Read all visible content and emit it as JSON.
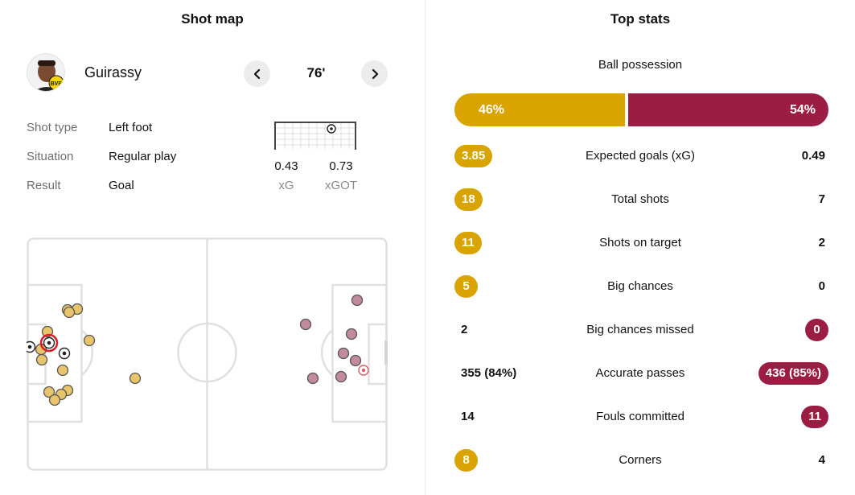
{
  "shot_map": {
    "title": "Shot map",
    "player": {
      "name": "Guirassy",
      "club_badge": "BVB"
    },
    "minute": "76'",
    "prev_icon": "chevron-left-icon",
    "next_icon": "chevron-right-icon",
    "details": [
      {
        "label": "Shot type",
        "value": "Left foot"
      },
      {
        "label": "Situation",
        "value": "Regular play"
      },
      {
        "label": "Result",
        "value": "Goal"
      }
    ],
    "xg": {
      "value": "0.43",
      "label": "xG"
    },
    "xgot": {
      "value": "0.73",
      "label": "xGOT"
    },
    "colors": {
      "home": "#e8c56b",
      "away": "#c28b9c",
      "selected": "#d91f26"
    }
  },
  "top_stats": {
    "title": "Top stats",
    "possession": {
      "label": "Ball possession",
      "home": "46%",
      "away": "54%",
      "home_value": 46,
      "away_value": 54
    },
    "colors": {
      "home": "#d9a300",
      "away": "#9b1d44"
    },
    "rows": [
      {
        "label": "Expected goals (xG)",
        "home": "3.85",
        "away": "0.49",
        "highlight": "home"
      },
      {
        "label": "Total shots",
        "home": "18",
        "away": "7",
        "highlight": "home"
      },
      {
        "label": "Shots on target",
        "home": "11",
        "away": "2",
        "highlight": "home"
      },
      {
        "label": "Big chances",
        "home": "5",
        "away": "0",
        "highlight": "home"
      },
      {
        "label": "Big chances missed",
        "home": "2",
        "away": "0",
        "highlight": "away"
      },
      {
        "label": "Accurate passes",
        "home": "355 (84%)",
        "away": "436 (85%)",
        "highlight": "away"
      },
      {
        "label": "Fouls committed",
        "home": "14",
        "away": "11",
        "highlight": "away"
      },
      {
        "label": "Corners",
        "home": "8",
        "away": "4",
        "highlight": "home"
      }
    ]
  }
}
